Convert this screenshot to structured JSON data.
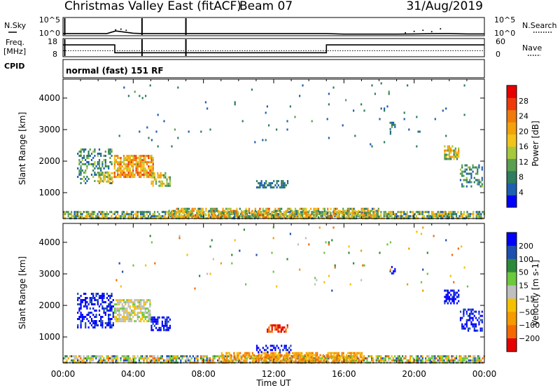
{
  "header": {
    "title": "Christmas Valley East (fitACF)",
    "beam": "Beam 07",
    "date": "31/Aug/2019"
  },
  "colors": {
    "frame": "#000000",
    "plot_bg": "#ffffff",
    "power_scale": [
      "#0000ff",
      "#1e5fb0",
      "#2e7d5e",
      "#5aa050",
      "#a6c83c",
      "#f2c31a",
      "#f2a20a",
      "#f07a0a",
      "#ee3a0a",
      "#e60000"
    ],
    "velocity_scale": [
      "#0000ff",
      "#1e4fb0",
      "#2b8a3a",
      "#6cc83c",
      "#bfbfbf",
      "#f5c000",
      "#f59a00",
      "#f56a00",
      "#e60000"
    ]
  },
  "chart_data": [
    {
      "type": "line",
      "panel": "noise",
      "left_label": "N.Sky",
      "left_ticks": [
        "10^5",
        "10^0"
      ],
      "right_label": "N.Search",
      "right_ticks": [
        "10^5",
        "10^0"
      ],
      "series": [
        {
          "name": "N.Sky",
          "x": [
            0,
            0.5,
            1,
            1.5,
            2,
            2.5,
            3,
            3.5,
            4,
            4.5,
            5,
            6,
            7,
            8,
            10,
            12,
            14,
            15,
            16,
            18,
            19,
            20,
            21,
            22,
            23,
            24
          ],
          "y": [
            0.6,
            0.6,
            0.6,
            0.6,
            0.6,
            0.6,
            1.3,
            1.0,
            0.7,
            0.6,
            0.6,
            0.6,
            0.6,
            0.6,
            0.6,
            0.6,
            0.6,
            0.6,
            0.45,
            0.45,
            0.45,
            0.5,
            0.55,
            0.6,
            0.5,
            0.5
          ]
        },
        {
          "name": "N.Search",
          "x": [
            3,
            3.3,
            3.6,
            19.5,
            20,
            20.5,
            21,
            21.5
          ],
          "y": [
            1.6,
            1.8,
            1.5,
            0.8,
            1.2,
            1.5,
            1.1,
            1.9
          ]
        }
      ],
      "ylim": [
        0,
        5
      ]
    },
    {
      "type": "line",
      "panel": "frequency",
      "left_label": "Freq.",
      "left_unit": "[MHz]",
      "left_ticks": [
        "18",
        "8"
      ],
      "right_label": "Nave",
      "right_ticks": [
        "60",
        "0"
      ],
      "series": [
        {
          "name": "Freq.",
          "x": [
            0,
            2.95,
            2.95,
            15,
            15,
            24
          ],
          "y": [
            14.5,
            14.5,
            10.2,
            10.2,
            14.5,
            14.5
          ]
        },
        {
          "name": "Nave",
          "x": [
            0,
            24
          ],
          "y": [
            20,
            20
          ]
        }
      ],
      "ylim": [
        8,
        18
      ],
      "dropouts_hours": [
        0.1,
        4.5,
        7.0
      ]
    },
    {
      "type": "label",
      "panel": "cpid",
      "label": "CPID",
      "value": "normal (fast) 151 RF"
    },
    {
      "type": "heatmap",
      "panel": "power",
      "xlabel": "",
      "ylabel": "Slant Range [km]",
      "xlim": [
        0,
        24
      ],
      "ylim": [
        180,
        4600
      ],
      "yticks": [
        1000,
        2000,
        3000,
        4000
      ],
      "colorbar": {
        "label": "Power [dB]",
        "range": [
          0,
          32
        ],
        "ticks": [
          4,
          8,
          12,
          16,
          20,
          24,
          28
        ]
      },
      "regions": [
        {
          "t0": 0.0,
          "t1": 24.0,
          "r0": 180,
          "r1": 420,
          "v0": 4,
          "v1": 22,
          "density": 0.75
        },
        {
          "t0": 6.0,
          "t1": 18.0,
          "r0": 250,
          "r1": 520,
          "v0": 6,
          "v1": 26,
          "density": 0.6
        },
        {
          "t0": 0.8,
          "t1": 2.8,
          "r0": 1300,
          "r1": 2400,
          "v0": 4,
          "v1": 14,
          "density": 0.35
        },
        {
          "t0": 2.0,
          "t1": 2.8,
          "r0": 1350,
          "r1": 1650,
          "v0": 12,
          "v1": 22,
          "density": 0.7
        },
        {
          "t0": 2.9,
          "t1": 5.1,
          "r0": 1500,
          "r1": 2200,
          "v0": 14,
          "v1": 28,
          "density": 0.8
        },
        {
          "t0": 5.0,
          "t1": 6.1,
          "r0": 1250,
          "r1": 1650,
          "v0": 8,
          "v1": 22,
          "density": 0.55
        },
        {
          "t0": 11.0,
          "t1": 12.8,
          "r0": 1150,
          "r1": 1400,
          "v0": 4,
          "v1": 10,
          "density": 0.55
        },
        {
          "t0": 18.6,
          "t1": 18.9,
          "r0": 3000,
          "r1": 3250,
          "v0": 4,
          "v1": 10,
          "density": 0.5
        },
        {
          "t0": 21.7,
          "t1": 22.5,
          "r0": 2100,
          "r1": 2500,
          "v0": 8,
          "v1": 24,
          "density": 0.65
        },
        {
          "t0": 22.6,
          "t1": 23.9,
          "r0": 1200,
          "r1": 1900,
          "v0": 4,
          "v1": 14,
          "density": 0.45
        },
        {
          "t0": 3.0,
          "t1": 23.0,
          "r0": 2500,
          "r1": 4500,
          "v0": 4,
          "v1": 10,
          "density": 0.01
        }
      ]
    },
    {
      "type": "heatmap",
      "panel": "velocity",
      "xlabel": "Time UT",
      "ylabel": "Slant Range [km]",
      "xlim": [
        0,
        24
      ],
      "ylim": [
        180,
        4600
      ],
      "xticks": [
        "00:00",
        "04:00",
        "08:00",
        "12:00",
        "16:00",
        "20:00",
        "00:00"
      ],
      "xtick_hours": [
        0,
        4,
        8,
        12,
        16,
        20,
        24
      ],
      "yticks": [
        1000,
        2000,
        3000,
        4000
      ],
      "colorbar": {
        "label": "Velocity [m s-1]",
        "ticks": [
          "200",
          "100",
          "50",
          "15",
          "−15",
          "−50",
          "−100",
          "−200"
        ]
      },
      "regions": [
        {
          "t0": 0.0,
          "t1": 24.0,
          "r0": 180,
          "r1": 420,
          "class": "mixed-green-orange",
          "density": 0.7
        },
        {
          "t0": 9.0,
          "t1": 17.0,
          "r0": 250,
          "r1": 520,
          "class": "orange",
          "density": 0.65
        },
        {
          "t0": 0.8,
          "t1": 2.9,
          "r0": 1300,
          "r1": 2400,
          "class": "blue",
          "density": 0.45
        },
        {
          "t0": 2.9,
          "t1": 5.0,
          "r0": 1500,
          "r1": 2200,
          "class": "grey",
          "density": 0.75
        },
        {
          "t0": 5.0,
          "t1": 6.1,
          "r0": 1250,
          "r1": 1650,
          "class": "blue",
          "density": 0.55
        },
        {
          "t0": 11.6,
          "t1": 12.8,
          "r0": 1200,
          "r1": 1400,
          "class": "red",
          "density": 0.6
        },
        {
          "t0": 11.0,
          "t1": 13.0,
          "r0": 520,
          "r1": 750,
          "class": "blue",
          "density": 0.4
        },
        {
          "t0": 18.6,
          "t1": 18.9,
          "r0": 3000,
          "r1": 3250,
          "class": "blue",
          "density": 0.5
        },
        {
          "t0": 21.7,
          "t1": 22.5,
          "r0": 2100,
          "r1": 2500,
          "class": "blue",
          "density": 0.65
        },
        {
          "t0": 22.6,
          "t1": 23.9,
          "r0": 1200,
          "r1": 1900,
          "class": "blue",
          "density": 0.45
        },
        {
          "t0": 3.0,
          "t1": 23.0,
          "r0": 2500,
          "r1": 4500,
          "class": "mixed-green-orange",
          "density": 0.01
        }
      ]
    }
  ]
}
